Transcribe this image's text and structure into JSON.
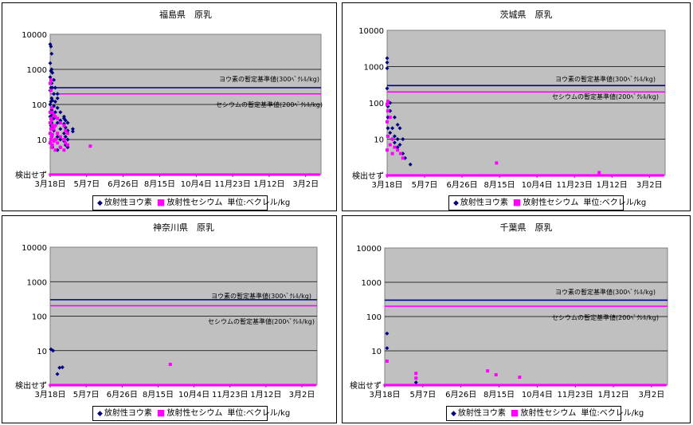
{
  "common": {
    "x_tick_labels": [
      "3月18日",
      "5月7日",
      "6月26日",
      "8月15日",
      "10月4日",
      "11月23日",
      "1月12日",
      "3月2日"
    ],
    "y_tick_labels": [
      "検出せず",
      "10",
      "100",
      "1000",
      "10000"
    ],
    "legend": {
      "iodine": "放射性ヨウ素",
      "cesium": "放射性セシウム",
      "unit": "単位:ベクレル/kg"
    },
    "iodine_limit_label": "ヨウ素の暫定基準値(300ﾍﾞｸﾚﾙ/kg)",
    "cesium_limit_label": "セシウムの暫定基準値(200ﾍﾞｸﾚﾙ/kg)",
    "colors": {
      "iodine": "#000080",
      "cesium": "#ff00ff",
      "plot_bg": "#c0c0c0"
    }
  },
  "chart_data": [
    {
      "type": "scatter",
      "title": "福島県　原乳",
      "y_scale": "log",
      "ylim": [
        1,
        10000
      ],
      "xlim": [
        "2011-03-18",
        "2012-03-23"
      ],
      "grid": true,
      "legend_position": "bottom",
      "limits": [
        {
          "name": "ヨウ素の暫定基準値(300ﾍﾞｸﾚﾙ/kg)",
          "value": 300
        },
        {
          "name": "セシウムの暫定基準値(200ﾍﾞｸﾚﾙ/kg)",
          "value": 200
        }
      ],
      "series": [
        {
          "name": "放射性ヨウ素",
          "points": [
            [
              "2011-03-18",
              5200
            ],
            [
              "2011-03-18",
              1500
            ],
            [
              "2011-03-18",
              600
            ],
            [
              "2011-03-18",
              250
            ],
            [
              "2011-03-18",
              100
            ],
            [
              "2011-03-18",
              45
            ],
            [
              "2011-03-18",
              15
            ],
            [
              "2011-03-18",
              8
            ],
            [
              "2011-03-19",
              4500
            ],
            [
              "2011-03-19",
              900
            ],
            [
              "2011-03-19",
              300
            ],
            [
              "2011-03-19",
              120
            ],
            [
              "2011-03-19",
              60
            ],
            [
              "2011-03-19",
              25
            ],
            [
              "2011-03-20",
              2800
            ],
            [
              "2011-03-20",
              1000
            ],
            [
              "2011-03-20",
              400
            ],
            [
              "2011-03-20",
              150
            ],
            [
              "2011-03-20",
              70
            ],
            [
              "2011-03-20",
              30
            ],
            [
              "2011-03-20",
              12
            ],
            [
              "2011-03-21",
              800
            ],
            [
              "2011-03-21",
              300
            ],
            [
              "2011-03-21",
              130
            ],
            [
              "2011-03-21",
              50
            ],
            [
              "2011-03-21",
              22
            ],
            [
              "2011-03-21",
              6
            ],
            [
              "2011-03-23",
              500
            ],
            [
              "2011-03-23",
              200
            ],
            [
              "2011-03-23",
              90
            ],
            [
              "2011-03-23",
              40
            ],
            [
              "2011-03-23",
              18
            ],
            [
              "2011-03-25",
              300
            ],
            [
              "2011-03-25",
              120
            ],
            [
              "2011-03-25",
              60
            ],
            [
              "2011-03-25",
              25
            ],
            [
              "2011-03-25",
              10
            ],
            [
              "2011-03-28",
              200
            ],
            [
              "2011-03-28",
              150
            ],
            [
              "2011-03-28",
              80
            ],
            [
              "2011-03-28",
              30
            ],
            [
              "2011-03-28",
              12
            ],
            [
              "2011-03-28",
              5
            ],
            [
              "2011-04-01",
              60
            ],
            [
              "2011-04-01",
              35
            ],
            [
              "2011-04-01",
              20
            ],
            [
              "2011-04-01",
              10
            ],
            [
              "2011-04-01",
              6
            ],
            [
              "2011-04-06",
              45
            ],
            [
              "2011-04-06",
              40
            ],
            [
              "2011-04-06",
              28
            ],
            [
              "2011-04-06",
              15
            ],
            [
              "2011-04-06",
              9
            ],
            [
              "2011-04-08",
              35
            ],
            [
              "2011-04-08",
              22
            ],
            [
              "2011-04-08",
              12
            ],
            [
              "2011-04-08",
              7
            ],
            [
              "2011-04-11",
              30
            ],
            [
              "2011-04-11",
              18
            ],
            [
              "2011-04-11",
              10
            ],
            [
              "2011-04-11",
              6
            ],
            [
              "2011-04-18",
              20
            ],
            [
              "2011-04-18",
              17
            ]
          ]
        },
        {
          "name": "放射性セシウム",
          "points": [
            [
              "2011-03-18",
              400
            ],
            [
              "2011-03-18",
              60
            ],
            [
              "2011-03-18",
              30
            ],
            [
              "2011-03-18",
              15
            ],
            [
              "2011-03-18",
              8
            ],
            [
              "2011-03-19",
              500
            ],
            [
              "2011-03-19",
              250
            ],
            [
              "2011-03-19",
              40
            ],
            [
              "2011-03-19",
              20
            ],
            [
              "2011-03-19",
              10
            ],
            [
              "2011-03-20",
              80
            ],
            [
              "2011-03-20",
              35
            ],
            [
              "2011-03-20",
              12
            ],
            [
              "2011-03-20",
              6
            ],
            [
              "2011-03-21",
              60
            ],
            [
              "2011-03-21",
              25
            ],
            [
              "2011-03-21",
              14
            ],
            [
              "2011-03-21",
              7
            ],
            [
              "2011-03-23",
              50
            ],
            [
              "2011-03-23",
              20
            ],
            [
              "2011-03-23",
              9
            ],
            [
              "2011-03-25",
              45
            ],
            [
              "2011-03-25",
              25
            ],
            [
              "2011-03-25",
              10
            ],
            [
              "2011-03-25",
              5
            ],
            [
              "2011-03-28",
              40
            ],
            [
              "2011-03-28",
              15
            ],
            [
              "2011-03-28",
              8
            ],
            [
              "2011-04-01",
              30
            ],
            [
              "2011-04-01",
              12
            ],
            [
              "2011-04-01",
              6
            ],
            [
              "2011-04-06",
              25
            ],
            [
              "2011-04-06",
              10
            ],
            [
              "2011-04-06",
              5
            ],
            [
              "2011-04-08",
              18
            ],
            [
              "2011-04-08",
              8
            ],
            [
              "2011-04-11",
              15
            ],
            [
              "2011-04-11",
              7
            ],
            [
              "2011-05-12",
              6.5
            ]
          ]
        }
      ]
    },
    {
      "type": "scatter",
      "title": "茨城県　原乳",
      "y_scale": "log",
      "ylim": [
        1,
        10000
      ],
      "xlim": [
        "2011-03-18",
        "2012-03-23"
      ],
      "grid": true,
      "legend_position": "bottom",
      "limits": [
        {
          "name": "ヨウ素の暫定基準値(300ﾍﾞｸﾚﾙ/kg)",
          "value": 300
        },
        {
          "name": "セシウムの暫定基準値(200ﾍﾞｸﾚﾙ/kg)",
          "value": 200
        }
      ],
      "series": [
        {
          "name": "放射性ヨウ素",
          "points": [
            [
              "2011-03-18",
              1700
            ],
            [
              "2011-03-18",
              1300
            ],
            [
              "2011-03-18",
              900
            ],
            [
              "2011-03-18",
              250
            ],
            [
              "2011-03-19",
              80
            ],
            [
              "2011-03-19",
              40
            ],
            [
              "2011-03-19",
              20
            ],
            [
              "2011-03-22",
              100
            ],
            [
              "2011-03-22",
              60
            ],
            [
              "2011-03-22",
              15
            ],
            [
              "2011-03-25",
              20
            ],
            [
              "2011-03-25",
              10
            ],
            [
              "2011-03-28",
              40
            ],
            [
              "2011-03-28",
              12
            ],
            [
              "2011-03-28",
              8
            ],
            [
              "2011-04-01",
              25
            ],
            [
              "2011-04-01",
              10
            ],
            [
              "2011-04-01",
              6
            ],
            [
              "2011-04-04",
              20
            ],
            [
              "2011-04-04",
              7
            ],
            [
              "2011-04-08",
              10
            ],
            [
              "2011-04-08",
              4
            ],
            [
              "2011-04-11",
              3
            ],
            [
              "2011-04-18",
              2
            ]
          ]
        },
        {
          "name": "放射性セシウム",
          "points": [
            [
              "2011-03-18",
              90
            ],
            [
              "2011-03-18",
              30
            ],
            [
              "2011-03-18",
              5
            ],
            [
              "2011-03-19",
              110
            ],
            [
              "2011-03-19",
              60
            ],
            [
              "2011-03-19",
              12
            ],
            [
              "2011-03-22",
              40
            ],
            [
              "2011-03-22",
              7
            ],
            [
              "2011-03-25",
              10
            ],
            [
              "2011-03-25",
              4
            ],
            [
              "2011-03-28",
              6
            ],
            [
              "2011-04-01",
              5
            ],
            [
              "2011-04-05",
              4
            ],
            [
              "2011-04-08",
              3
            ],
            [
              "2011-08-11",
              2.2
            ],
            [
              "2011-12-26",
              1.2
            ]
          ]
        }
      ]
    },
    {
      "type": "scatter",
      "title": "神奈川県　原乳",
      "y_scale": "log",
      "ylim": [
        1,
        10000
      ],
      "xlim": [
        "2011-03-18",
        "2012-03-23"
      ],
      "grid": true,
      "legend_position": "bottom",
      "limits": [
        {
          "name": "ヨウ素の暫定基準値(300ﾍﾞｸﾚﾙ/kg)",
          "value": 300
        },
        {
          "name": "セシウムの暫定基準値(200ﾍﾞｸﾚﾙ/kg)",
          "value": 200
        }
      ],
      "series": [
        {
          "name": "放射性ヨウ素",
          "points": [
            [
              "2011-03-19",
              11
            ],
            [
              "2011-03-22",
              10
            ],
            [
              "2011-03-28",
              2.1
            ],
            [
              "2011-03-31",
              3.2
            ],
            [
              "2011-04-04",
              3.3
            ]
          ]
        },
        {
          "name": "放射性セシウム",
          "points": [
            [
              "2011-09-01",
              4
            ]
          ]
        }
      ]
    },
    {
      "type": "scatter",
      "title": "千葉県　原乳",
      "y_scale": "log",
      "ylim": [
        1,
        10000
      ],
      "xlim": [
        "2011-03-18",
        "2012-03-23"
      ],
      "grid": true,
      "legend_position": "bottom",
      "limits": [
        {
          "name": "ヨウ素の暫定基準値(300ﾍﾞｸﾚﾙ/kg)",
          "value": 300
        },
        {
          "name": "セシウムの暫定基準値(200ﾍﾞｸﾚﾙ/kg)",
          "value": 200
        }
      ],
      "series": [
        {
          "name": "放射性ヨウ素",
          "points": [
            [
              "2011-03-21",
              32
            ],
            [
              "2011-03-21",
              12
            ],
            [
              "2011-04-28",
              1.2
            ]
          ]
        },
        {
          "name": "放射性セシウム",
          "points": [
            [
              "2011-03-21",
              5
            ],
            [
              "2011-04-28",
              2.2
            ],
            [
              "2011-04-28",
              1.6
            ],
            [
              "2011-07-31",
              2.6
            ],
            [
              "2011-08-11",
              2.0
            ],
            [
              "2011-09-11",
              1.7
            ]
          ]
        }
      ]
    }
  ]
}
